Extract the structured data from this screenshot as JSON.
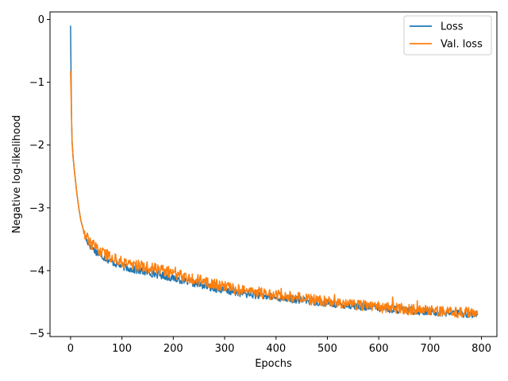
{
  "chart_data": {
    "type": "line",
    "title": "",
    "xlabel": "Epochs",
    "ylabel": "Negative log-likelihood",
    "xlim": [
      -40,
      830
    ],
    "ylim": [
      -5.05,
      0.12
    ],
    "xticks": [
      0,
      100,
      200,
      300,
      400,
      500,
      600,
      700,
      800
    ],
    "xtick_labels": [
      "0",
      "100",
      "200",
      "300",
      "400",
      "500",
      "600",
      "700",
      "800"
    ],
    "yticks": [
      0,
      -1,
      -2,
      -3,
      -4,
      -5
    ],
    "ytick_labels": [
      "0",
      "−1",
      "−2",
      "−3",
      "−4",
      "−5"
    ],
    "grid": false,
    "legend_position": "top-right",
    "series": [
      {
        "name": "Loss",
        "color": "#1f77b4",
        "x": [
          0,
          1,
          2,
          3,
          5,
          8,
          12,
          16,
          20,
          25,
          30,
          40,
          50,
          60,
          80,
          100,
          120,
          150,
          180,
          200,
          250,
          300,
          350,
          400,
          450,
          500,
          550,
          600,
          650,
          700,
          750,
          793
        ],
        "y": [
          -0.1,
          -0.9,
          -1.6,
          -1.95,
          -2.2,
          -2.45,
          -2.75,
          -3.0,
          -3.2,
          -3.35,
          -3.5,
          -3.62,
          -3.7,
          -3.76,
          -3.86,
          -3.93,
          -3.98,
          -4.03,
          -4.08,
          -4.12,
          -4.22,
          -4.32,
          -4.38,
          -4.43,
          -4.47,
          -4.52,
          -4.56,
          -4.6,
          -4.63,
          -4.66,
          -4.68,
          -4.7
        ]
      },
      {
        "name": "Val. loss",
        "color": "#ff7f0e",
        "x": [
          0,
          1,
          2,
          3,
          5,
          8,
          12,
          16,
          20,
          25,
          30,
          40,
          50,
          60,
          80,
          100,
          120,
          150,
          180,
          200,
          250,
          300,
          350,
          400,
          450,
          500,
          550,
          600,
          650,
          700,
          750,
          793
        ],
        "y": [
          -0.82,
          -1.2,
          -1.6,
          -1.95,
          -2.2,
          -2.45,
          -2.75,
          -3.0,
          -3.2,
          -3.35,
          -3.45,
          -3.57,
          -3.64,
          -3.7,
          -3.79,
          -3.86,
          -3.9,
          -3.95,
          -4.0,
          -4.04,
          -4.15,
          -4.26,
          -4.33,
          -4.39,
          -4.44,
          -4.49,
          -4.53,
          -4.58,
          -4.61,
          -4.64,
          -4.66,
          -4.68
        ]
      }
    ]
  }
}
